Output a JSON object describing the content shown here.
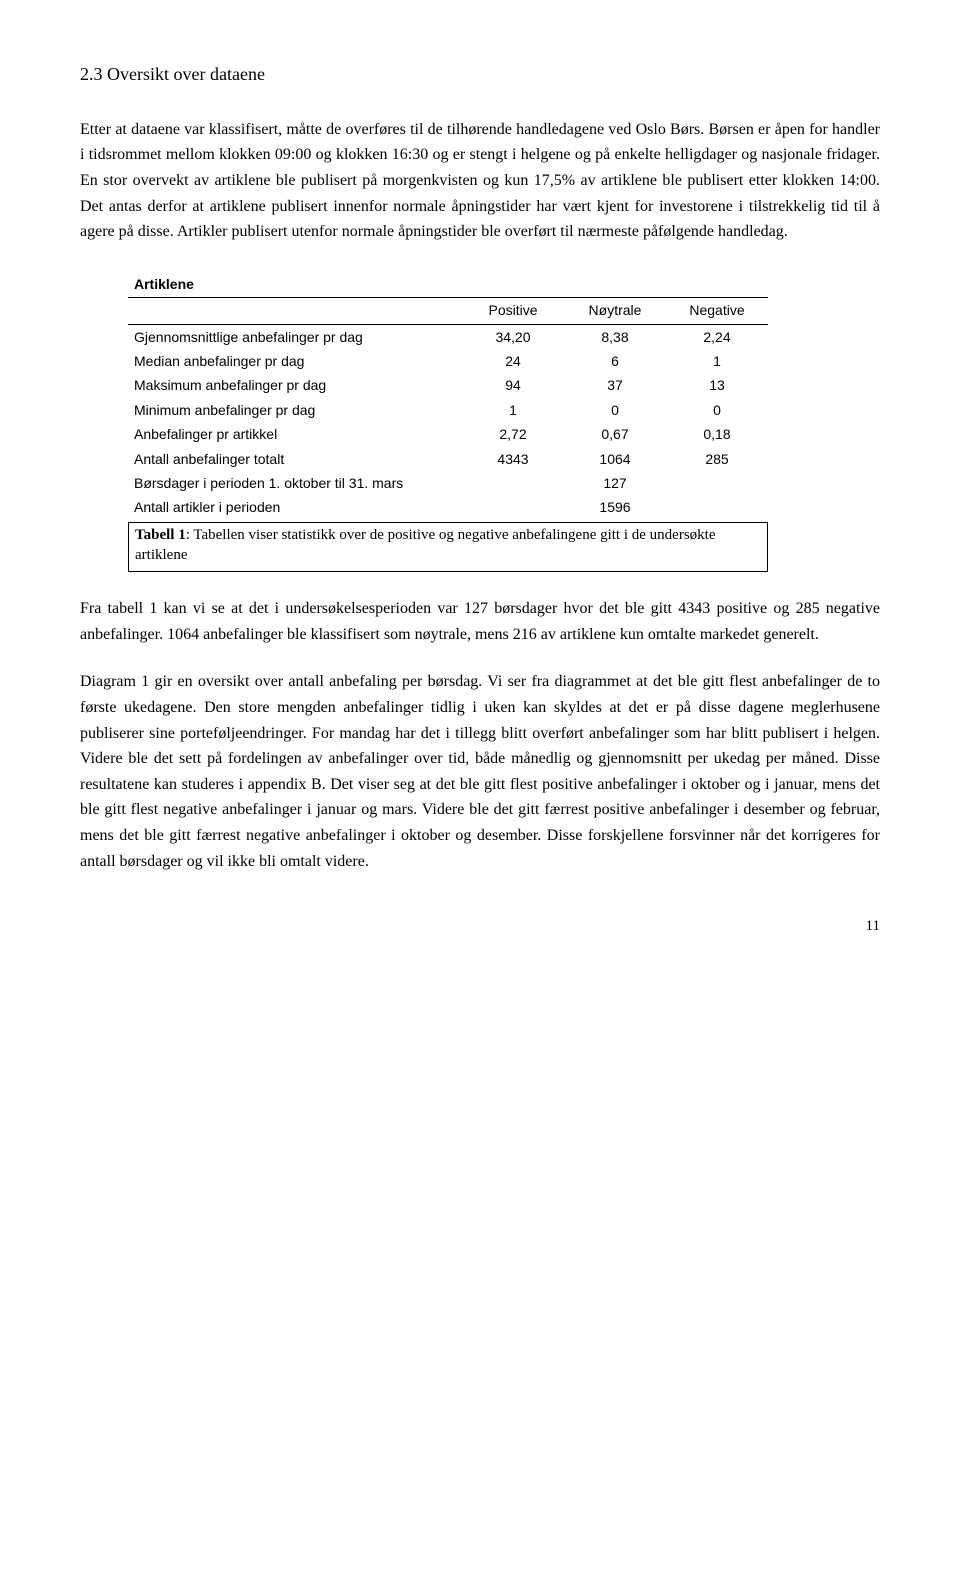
{
  "heading": "2.3  Oversikt over dataene",
  "para1": "Etter at dataene var klassifisert, måtte de overføres til de tilhørende handledagene ved Oslo Børs. Børsen er åpen for handler i tidsrommet mellom klokken 09:00 og klokken 16:30 og er stengt i helgene og på enkelte helligdager og nasjonale fridager. En stor overvekt av artiklene ble publisert på morgenkvisten og kun 17,5% av artiklene ble publisert etter klokken 14:00. Det antas derfor at artiklene publisert innenfor normale åpningstider har vært kjent for investorene i tilstrekkelig tid til å agere på disse. Artikler publisert utenfor normale åpningstider ble overført til nærmeste påfølgende handledag.",
  "table": {
    "title": "Artiklene",
    "columns": [
      "",
      "Positive",
      "Nøytrale",
      "Negative"
    ],
    "rows": [
      {
        "label": "Gjennomsnittlige anbefalinger pr dag",
        "vals": [
          "34,20",
          "8,38",
          "2,24"
        ]
      },
      {
        "label": "Median anbefalinger pr dag",
        "vals": [
          "24",
          "6",
          "1"
        ]
      },
      {
        "label": "Maksimum anbefalinger pr dag",
        "vals": [
          "94",
          "37",
          "13"
        ]
      },
      {
        "label": "Minimum anbefalinger pr dag",
        "vals": [
          "1",
          "0",
          "0"
        ]
      },
      {
        "label": "Anbefalinger pr artikkel",
        "vals": [
          "2,72",
          "0,67",
          "0,18"
        ]
      },
      {
        "label": "Antall anbefalinger totalt",
        "vals": [
          "4343",
          "1064",
          "285"
        ]
      },
      {
        "label": "Børsdager i perioden 1. oktober til 31. mars",
        "vals": [
          "",
          "127",
          ""
        ]
      },
      {
        "label": "Antall artikler i perioden",
        "vals": [
          "",
          "1596",
          ""
        ]
      }
    ],
    "caption_bold": "Tabell 1",
    "caption_rest": ": Tabellen viser statistikk over de positive og negative anbefalingene gitt i de undersøkte artiklene"
  },
  "para2": "Fra tabell 1 kan vi se at det i undersøkelsesperioden var 127 børsdager hvor det ble gitt 4343 positive og 285 negative anbefalinger. 1064 anbefalinger ble klassifisert som nøytrale, mens 216 av artiklene kun omtalte markedet generelt.",
  "para3": "Diagram 1 gir en oversikt over antall anbefaling per børsdag. Vi ser fra diagrammet at det ble gitt flest anbefalinger de to første ukedagene. Den store mengden anbefalinger tidlig i uken kan skyldes at det er på disse dagene meglerhusene publiserer sine porteføljeendringer. For mandag har det i tillegg blitt overført anbefalinger som har blitt publisert i helgen. Videre ble det sett på fordelingen av anbefalinger over tid, både månedlig og gjennomsnitt per ukedag per måned. Disse resultatene kan studeres i appendix B. Det viser seg at det ble gitt flest positive anbefalinger i oktober og i januar, mens det ble gitt flest negative anbefalinger i januar og mars. Videre ble det gitt færrest positive anbefalinger i desember og februar, mens det ble gitt færrest negative anbefalinger i oktober og desember. Disse forskjellene forsvinner når det korrigeres for antall børsdager og vil ikke bli omtalt videre.",
  "page_number": "11"
}
